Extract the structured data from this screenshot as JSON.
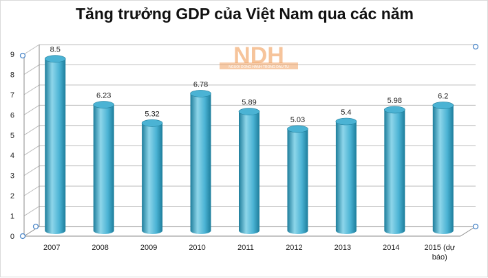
{
  "chart_data": {
    "type": "bar",
    "title": "Tăng trưởng GDP của Việt Nam qua các năm",
    "categories": [
      "2007",
      "2008",
      "2009",
      "2010",
      "2011",
      "2012",
      "2013",
      "2014",
      "2015 (dự báo)"
    ],
    "category_lines": [
      [
        "2007"
      ],
      [
        "2008"
      ],
      [
        "2009"
      ],
      [
        "2010"
      ],
      [
        "2011"
      ],
      [
        "2012"
      ],
      [
        "2013"
      ],
      [
        "2014"
      ],
      [
        "2015 (dự",
        "báo)"
      ]
    ],
    "values": [
      8.5,
      6.23,
      5.32,
      6.78,
      5.89,
      5.03,
      5.4,
      5.98,
      6.2
    ],
    "value_labels": [
      "8.5",
      "6.23",
      "5.32",
      "6.78",
      "5.89",
      "5.03",
      "5.4",
      "5.98",
      "6.2"
    ],
    "xlabel": "",
    "ylabel": "",
    "ylim": [
      0,
      9
    ],
    "yticks": [
      "0",
      "1",
      "2",
      "3",
      "4",
      "5",
      "6",
      "7",
      "8",
      "9"
    ],
    "grid": true,
    "bar_color": "#4bb3d4",
    "bar_dark": "#1d7d9b",
    "bar_light": "#8ed6ea",
    "watermark": "NDH",
    "watermark_sub": "NGUOI DONG HANH TRONG DAU TU"
  }
}
